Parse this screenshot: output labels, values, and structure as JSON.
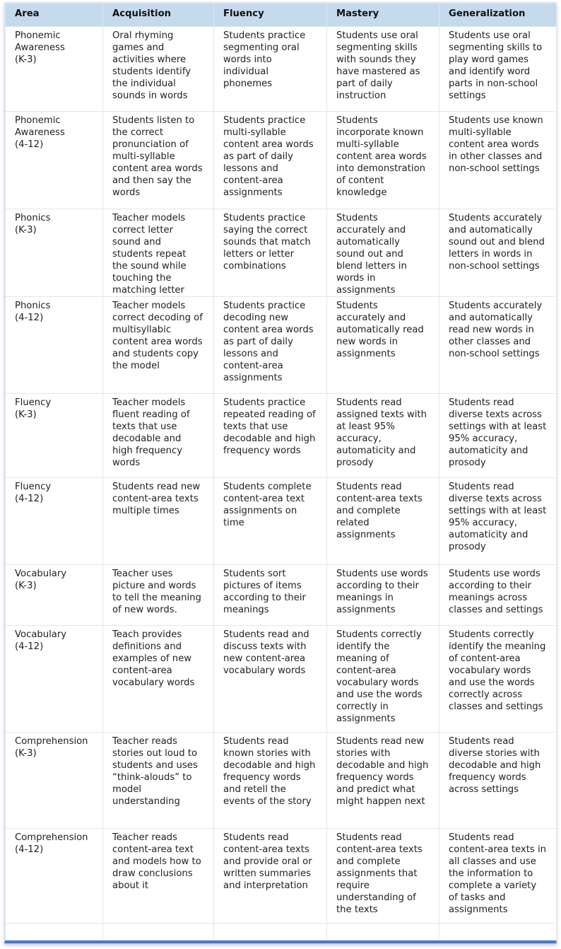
{
  "headers": [
    "Area",
    "Acquisition",
    "Fluency",
    "Mastery",
    "Generalization"
  ],
  "rows": [
    [
      "Phonemic Awareness (K-3)",
      "Oral rhyming games and activities where students identify the individual sounds in words",
      "Students practice segmenting oral words into individual phonemes",
      "Students use oral segmenting skills with sounds they have mastered as part of daily instruction",
      "Students use oral segmenting skills to play word games and identify word parts in non-school settings"
    ],
    [
      "Phonemic Awareness (4-12)",
      "Students listen to the correct pronunciation of multi-syllable content area words and then say the words",
      "Students practice multi-syllable content area words as part of daily lessons and content-area assignments",
      "Students incorporate known multi-syllable content area words into demonstration of content knowledge",
      "Students use known multi-syllable content area words in other classes and non-school settings"
    ],
    [
      "Phonics (K-3)",
      "Teacher models correct letter sound and students repeat the sound while touching the matching letter",
      "Students practice saying the correct sounds that match letters or letter combinations",
      "Students accurately and automatically sound out and blend letters in words in assignments",
      "Students accurately and automatically sound out and blend letters in words in non-school settings"
    ],
    [
      "Phonics (4-12)",
      "Teacher models correct decoding of multisyllabic content area words and students copy the model",
      "Students practice decoding new content area words as part of daily lessons and content-area assignments",
      "Students accurately and automatically read new words in assignments",
      "Students accurately and automatically read new words in other classes and non-school settings"
    ],
    [
      "Fluency (K-3)",
      "Teacher models fluent reading of texts that use decodable and high frequency words",
      "Students practice repeated reading of texts that use decodable and high frequency words",
      "Students read assigned texts with at least 95% accuracy, automaticity and prosody",
      "Students read diverse texts across settings with at least 95% accuracy, automaticity and prosody"
    ],
    [
      "Fluency (4-12)",
      "Students read new content-area texts multiple times",
      "Students complete content-area text assignments on time",
      "Students read content-area texts and complete related assignments",
      "Students read diverse texts across settings with at least 95% accuracy, automaticity and prosody"
    ],
    [
      "Vocabulary (K-3)",
      "Teacher uses picture and words to tell the meaning of new words.",
      "Students sort pictures of items according to their meanings",
      "Students use words according to their meanings in assignments",
      "Students use words according to their meanings across classes and settings"
    ],
    [
      "Vocabulary (4-12)",
      "Teach provides definitions and examples of new content-area vocabulary words",
      "Students read and discuss texts with new content-area vocabulary words",
      "Students correctly identify the meaning of content-area vocabulary words and use the words correctly in assignments",
      "Students correctly identify the meaning of content-area vocabulary words and use the words correctly across classes and settings"
    ],
    [
      "Comprehension (K-3)",
      "Teacher reads stories out loud to students and uses “think-alouds” to model understanding",
      "Students read known stories with decodable and high frequency words and retell the events of the story",
      "Students read new stories with decodable and high frequency words and predict what might happen next",
      "Students read diverse stories with decodable and high frequency words across settings"
    ],
    [
      "Comprehension (4-12)",
      "Teacher reads content-area text and models how to draw conclusions about it",
      "Students read content-area texts and provide oral or written summaries and interpretation",
      "Students read content-area texts and complete assignments that require understanding of the texts",
      "Students read content-area texts in all classes and use the information to complete a variety of tasks and assignments"
    ],
    [
      "",
      "",
      "",
      "",
      ""
    ]
  ]
}
